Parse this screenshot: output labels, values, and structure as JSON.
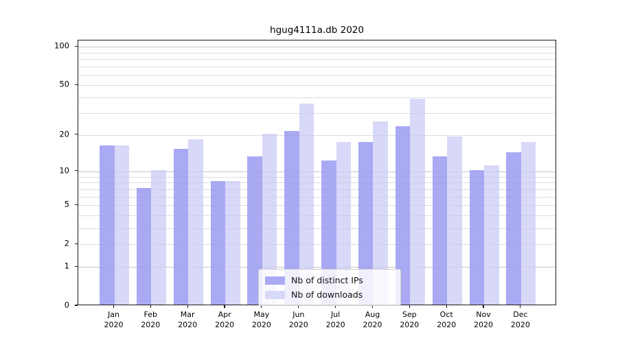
{
  "title": "hgug4111a.db 2020",
  "chart_data": {
    "type": "bar",
    "title": "hgug4111a.db 2020",
    "categories": [
      "Jan",
      "Feb",
      "Mar",
      "Apr",
      "May",
      "Jun",
      "Jul",
      "Aug",
      "Sep",
      "Oct",
      "Nov",
      "Dec"
    ],
    "x_year_label": "2020",
    "series": [
      {
        "name": "Nb of distinct IPs",
        "color": "#a9a9f4",
        "values": [
          16,
          7,
          15,
          8,
          13,
          21,
          12,
          17,
          23,
          13,
          10,
          14
        ]
      },
      {
        "name": "Nb of downloads",
        "color": "#d8d8f8",
        "values": [
          16,
          10,
          18,
          8,
          20,
          35,
          17,
          25,
          38,
          19,
          11,
          17
        ]
      }
    ],
    "y_scale": "log10(1+value)",
    "ylim": [
      0,
      112
    ],
    "y_ticks": [
      100,
      50,
      20,
      10,
      5,
      2,
      1,
      0
    ],
    "y_gridlines_minor": [
      2,
      3,
      4,
      5,
      6,
      7,
      8,
      9,
      20,
      30,
      40,
      50,
      60,
      70,
      80,
      90
    ],
    "y_gridlines_major": [
      1,
      10,
      100
    ],
    "grid": true,
    "legend_position": "bottom-center",
    "legend": [
      "Nb of distinct IPs",
      "Nb of downloads"
    ]
  },
  "colors": {
    "bar_distinct_ips": "#a9a9f4",
    "bar_downloads": "#d8d8f8",
    "grid_minor": "#ebebeb",
    "grid_major": "#d0d0d0",
    "axis": "#1a1a1a",
    "legend_border": "#cccccc"
  }
}
